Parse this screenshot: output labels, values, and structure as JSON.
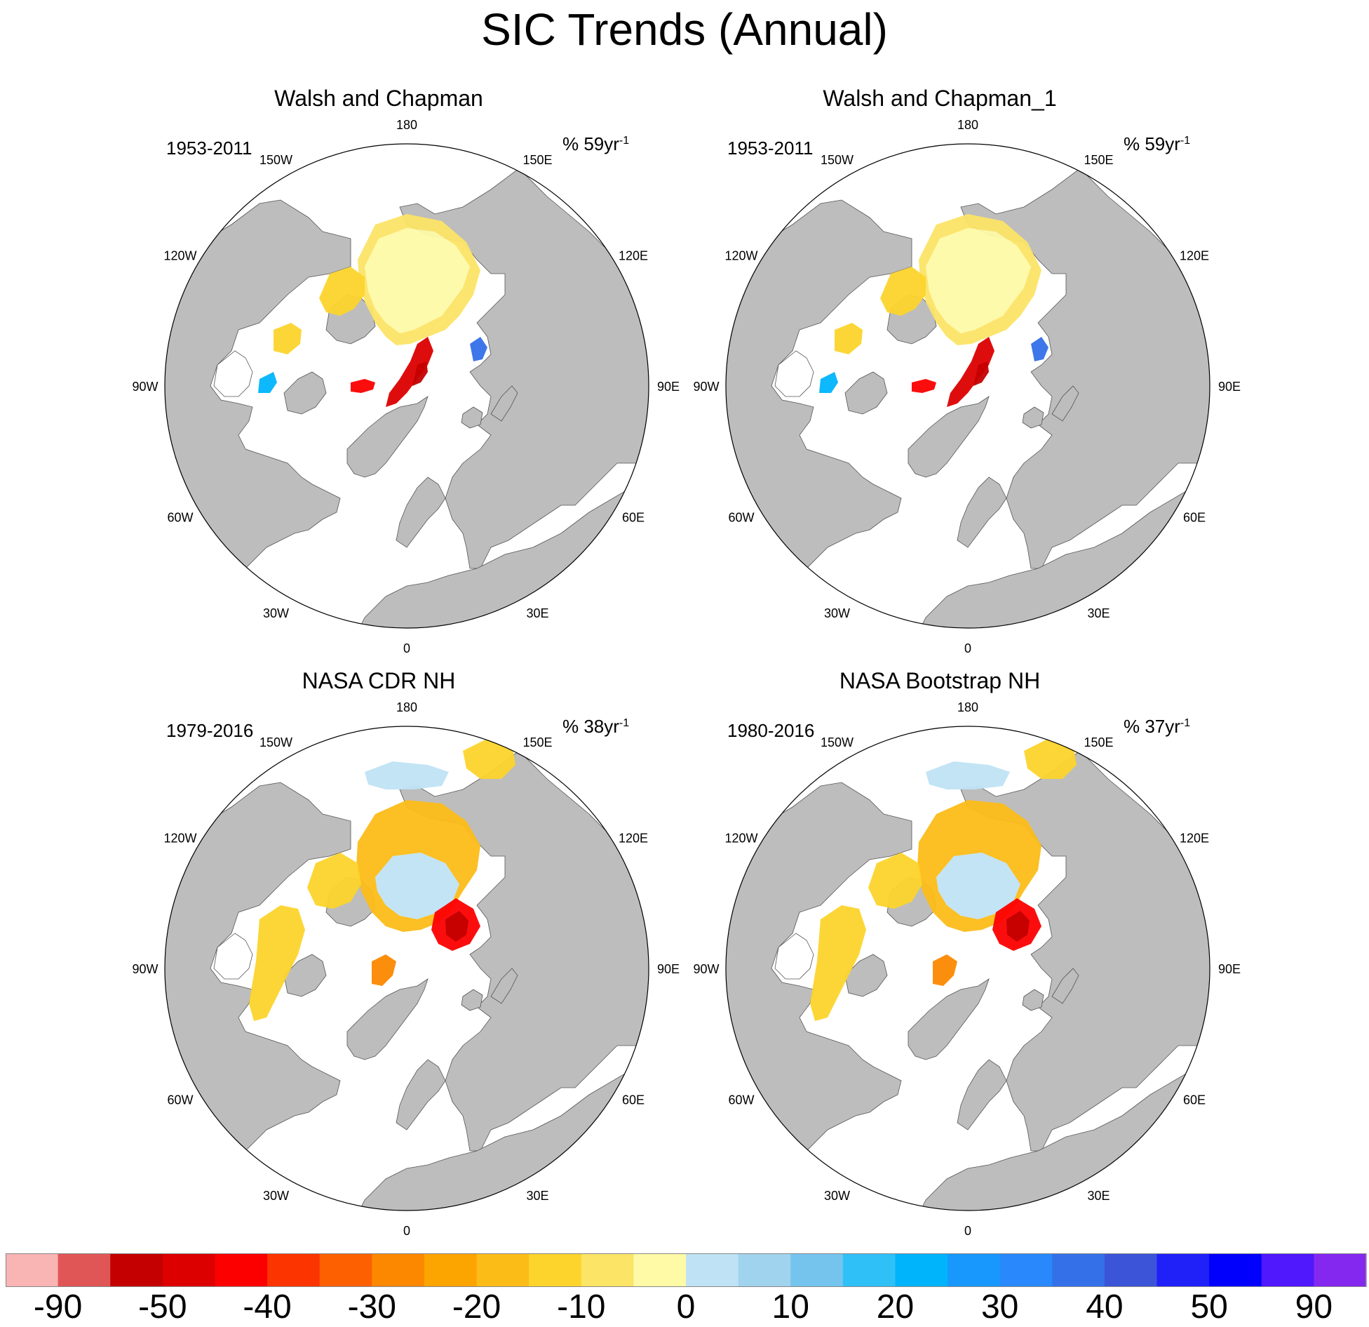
{
  "title": "SIC Trends (Annual)",
  "colors": {
    "land": "#bdbdbd",
    "ocean": "#ffffff",
    "map_border": "#000000"
  },
  "longitude_labels": [
    "180",
    "150E",
    "120E",
    "90E",
    "60E",
    "30E",
    "0",
    "30W",
    "60W",
    "90W",
    "120W",
    "150W"
  ],
  "panels": [
    {
      "title": "Walsh and Chapman",
      "period": "1953-2011",
      "units_prefix": "% 59yr",
      "units_exp": "-1",
      "pattern": "walsh"
    },
    {
      "title": "Walsh and Chapman_1",
      "period": "1953-2011",
      "units_prefix": "% 59yr",
      "units_exp": "-1",
      "pattern": "walsh"
    },
    {
      "title": "NASA CDR NH",
      "period": "1979-2016",
      "units_prefix": "% 38yr",
      "units_exp": "-1",
      "pattern": "nasa"
    },
    {
      "title": "NASA Bootstrap NH",
      "period": "1980-2016",
      "units_prefix": "% 37yr",
      "units_exp": "-1",
      "pattern": "nasa"
    }
  ],
  "colorbar": {
    "colors": [
      "#f9b4b4",
      "#e05656",
      "#c40000",
      "#dc0000",
      "#fc0000",
      "#fc3400",
      "#fc6000",
      "#fc8800",
      "#fca400",
      "#fcbc18",
      "#fcd42c",
      "#fce466",
      "#fefaa6",
      "#bfe3f4",
      "#a0d3ee",
      "#74c4ee",
      "#30c0f8",
      "#00b4fc",
      "#1898fc",
      "#2888fc",
      "#3470e8",
      "#3c54d8",
      "#2020f8",
      "#0000fc",
      "#5018fc",
      "#8428f0"
    ],
    "labels": [
      "-90",
      "-50",
      "-40",
      "-30",
      "-20",
      "-10",
      "0",
      "10",
      "20",
      "30",
      "40",
      "50",
      "90"
    ]
  }
}
